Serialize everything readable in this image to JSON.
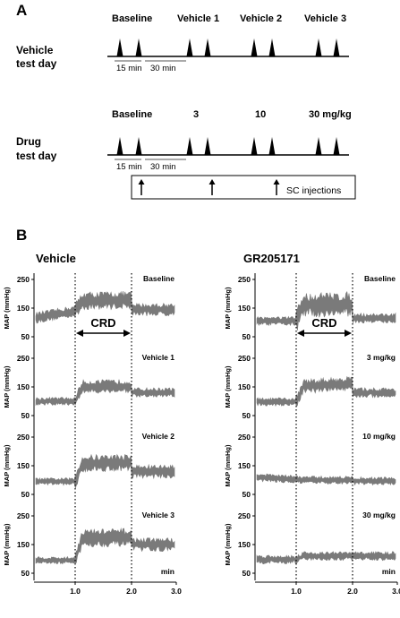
{
  "panel_a": {
    "letter": "A",
    "vehicle_row": {
      "label_line1": "Vehicle",
      "label_line2": "test day",
      "stage_labels": [
        "Baseline",
        "Vehicle 1",
        "Vehicle 2",
        "Vehicle 3"
      ],
      "interval_labels": [
        "15 min",
        "30 min"
      ]
    },
    "drug_row": {
      "label_line1": "Drug",
      "label_line2": "test day",
      "stage_labels": [
        "Baseline",
        "3",
        "10",
        "30 mg/kg"
      ],
      "interval_labels": [
        "15 min",
        "30 min"
      ]
    },
    "injection_label": "SC injections"
  },
  "panel_b": {
    "letter": "B",
    "left_title": "Vehicle",
    "right_title": "GR205171",
    "y_axis_label": "MAP (mmHg)",
    "y_ticks": [
      "250",
      "150",
      "50"
    ],
    "x_ticks": [
      "1.0",
      "2.0",
      "3.0"
    ],
    "x_unit": "min",
    "stimulus_label": "CRD",
    "left_trace_labels": [
      "Baseline",
      "Vehicle 1",
      "Vehicle 2",
      "Vehicle 3"
    ],
    "right_trace_labels": [
      "Baseline",
      "3 mg/kg",
      "10 mg/kg",
      "30 mg/kg"
    ]
  },
  "colors": {
    "trace": "#7a7a7a",
    "axis": "#000000"
  }
}
